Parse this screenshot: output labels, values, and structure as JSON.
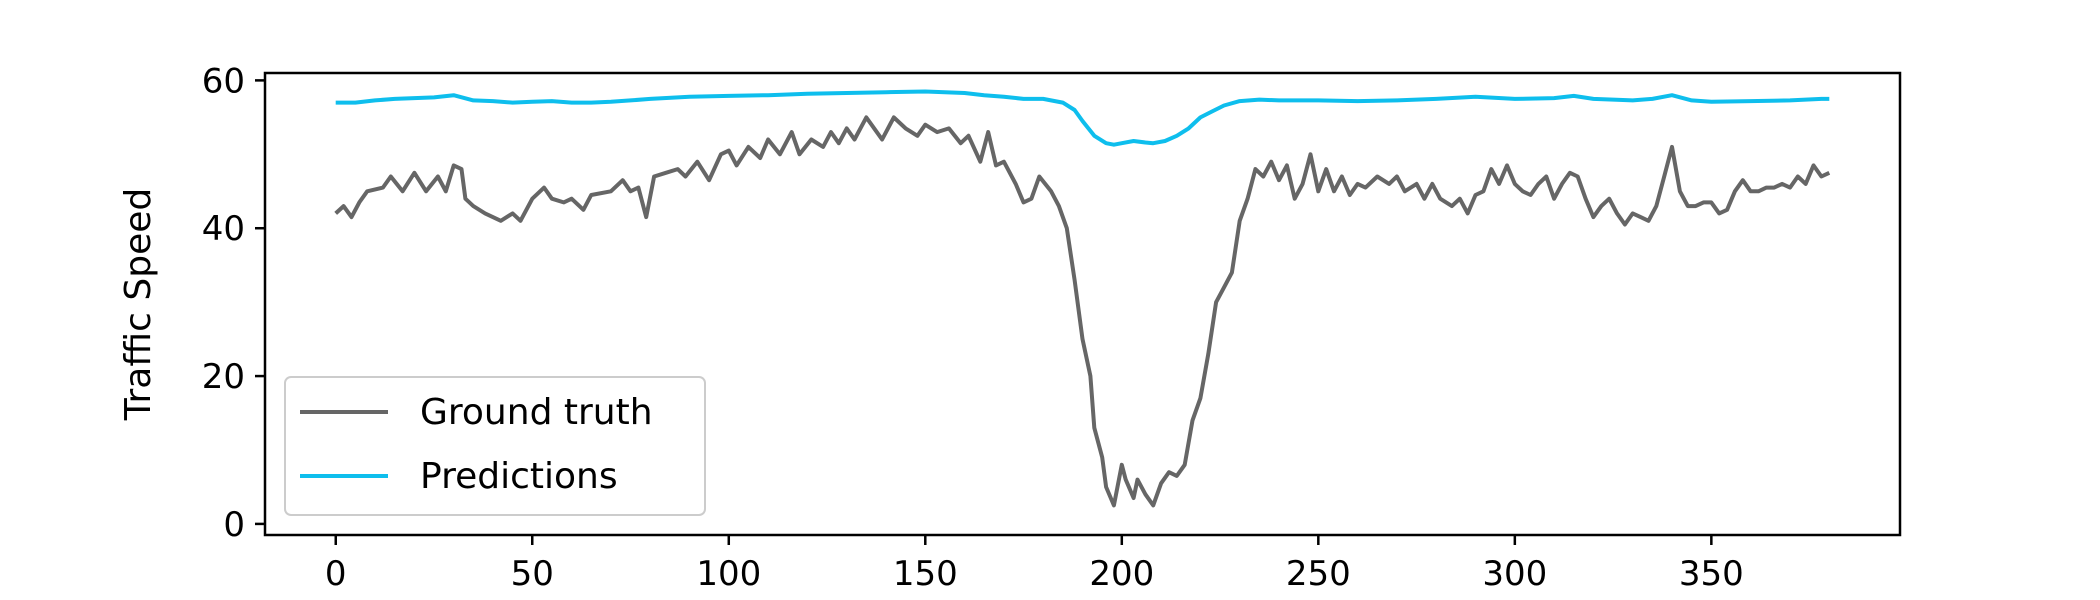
{
  "chart_data": {
    "type": "line",
    "title": "",
    "xlabel": "",
    "ylabel": "Traffic Speed",
    "xlim": [
      -18,
      398
    ],
    "ylim": [
      -1.5,
      61
    ],
    "xticks": [
      0,
      50,
      100,
      150,
      200,
      250,
      300,
      350
    ],
    "yticks": [
      0,
      20,
      40,
      60
    ],
    "grid": false,
    "legend_position": "lower-left",
    "series": [
      {
        "name": "Ground truth",
        "color": "#666666",
        "points": [
          [
            0,
            42
          ],
          [
            2,
            43
          ],
          [
            4,
            41.5
          ],
          [
            6,
            43.5
          ],
          [
            8,
            45
          ],
          [
            12,
            45.5
          ],
          [
            14,
            47
          ],
          [
            17,
            45
          ],
          [
            20,
            47.5
          ],
          [
            23,
            45
          ],
          [
            26,
            47
          ],
          [
            28,
            45
          ],
          [
            30,
            48.5
          ],
          [
            32,
            48
          ],
          [
            33,
            44
          ],
          [
            35,
            43
          ],
          [
            38,
            42
          ],
          [
            42,
            41
          ],
          [
            45,
            42
          ],
          [
            47,
            41
          ],
          [
            50,
            44
          ],
          [
            53,
            45.5
          ],
          [
            55,
            44
          ],
          [
            58,
            43.5
          ],
          [
            60,
            44
          ],
          [
            63,
            42.5
          ],
          [
            65,
            44.5
          ],
          [
            70,
            45
          ],
          [
            73,
            46.5
          ],
          [
            75,
            45
          ],
          [
            77,
            45.5
          ],
          [
            79,
            41.5
          ],
          [
            81,
            47
          ],
          [
            84,
            47.5
          ],
          [
            87,
            48
          ],
          [
            89,
            47
          ],
          [
            92,
            49
          ],
          [
            95,
            46.5
          ],
          [
            98,
            50
          ],
          [
            100,
            50.5
          ],
          [
            102,
            48.5
          ],
          [
            105,
            51
          ],
          [
            108,
            49.5
          ],
          [
            110,
            52
          ],
          [
            113,
            50
          ],
          [
            116,
            53
          ],
          [
            118,
            50
          ],
          [
            121,
            52
          ],
          [
            124,
            51
          ],
          [
            126,
            53
          ],
          [
            128,
            51.5
          ],
          [
            130,
            53.5
          ],
          [
            132,
            52
          ],
          [
            135,
            55
          ],
          [
            137,
            53.5
          ],
          [
            139,
            52
          ],
          [
            142,
            55
          ],
          [
            145,
            53.5
          ],
          [
            148,
            52.5
          ],
          [
            150,
            54
          ],
          [
            153,
            53
          ],
          [
            156,
            53.5
          ],
          [
            159,
            51.5
          ],
          [
            161,
            52.5
          ],
          [
            164,
            49
          ],
          [
            166,
            53
          ],
          [
            168,
            48.5
          ],
          [
            170,
            49
          ],
          [
            173,
            46
          ],
          [
            175,
            43.5
          ],
          [
            177,
            44
          ],
          [
            179,
            47
          ],
          [
            182,
            45
          ],
          [
            184,
            43
          ],
          [
            186,
            40
          ],
          [
            188,
            33
          ],
          [
            190,
            25
          ],
          [
            192,
            20
          ],
          [
            193,
            13
          ],
          [
            195,
            9
          ],
          [
            196,
            5
          ],
          [
            198,
            2.5
          ],
          [
            200,
            8
          ],
          [
            201,
            6
          ],
          [
            203,
            3.5
          ],
          [
            204,
            6
          ],
          [
            206,
            4
          ],
          [
            208,
            2.5
          ],
          [
            210,
            5.5
          ],
          [
            212,
            7
          ],
          [
            214,
            6.5
          ],
          [
            216,
            8
          ],
          [
            218,
            14
          ],
          [
            220,
            17
          ],
          [
            222,
            23
          ],
          [
            224,
            30
          ],
          [
            226,
            32
          ],
          [
            228,
            34
          ],
          [
            230,
            41
          ],
          [
            232,
            44
          ],
          [
            234,
            48
          ],
          [
            236,
            47
          ],
          [
            238,
            49
          ],
          [
            240,
            46.5
          ],
          [
            242,
            48.5
          ],
          [
            244,
            44
          ],
          [
            246,
            46
          ],
          [
            248,
            50
          ],
          [
            250,
            45
          ],
          [
            252,
            48
          ],
          [
            254,
            45
          ],
          [
            256,
            47
          ],
          [
            258,
            44.5
          ],
          [
            260,
            46
          ],
          [
            262,
            45.5
          ],
          [
            265,
            47
          ],
          [
            268,
            46
          ],
          [
            270,
            47
          ],
          [
            272,
            45
          ],
          [
            275,
            46
          ],
          [
            277,
            44
          ],
          [
            279,
            46
          ],
          [
            281,
            44
          ],
          [
            284,
            43
          ],
          [
            286,
            44
          ],
          [
            288,
            42
          ],
          [
            290,
            44.5
          ],
          [
            292,
            45
          ],
          [
            294,
            48
          ],
          [
            296,
            46
          ],
          [
            298,
            48.5
          ],
          [
            300,
            46
          ],
          [
            302,
            45
          ],
          [
            304,
            44.5
          ],
          [
            306,
            46
          ],
          [
            308,
            47
          ],
          [
            310,
            44
          ],
          [
            312,
            46
          ],
          [
            314,
            47.5
          ],
          [
            316,
            47
          ],
          [
            318,
            44
          ],
          [
            320,
            41.5
          ],
          [
            322,
            43
          ],
          [
            324,
            44
          ],
          [
            326,
            42
          ],
          [
            328,
            40.5
          ],
          [
            330,
            42
          ],
          [
            332,
            41.5
          ],
          [
            334,
            41
          ],
          [
            336,
            43
          ],
          [
            338,
            47
          ],
          [
            340,
            51
          ],
          [
            342,
            45
          ],
          [
            344,
            43
          ],
          [
            346,
            43
          ],
          [
            348,
            43.5
          ],
          [
            350,
            43.5
          ],
          [
            352,
            42
          ],
          [
            354,
            42.5
          ],
          [
            356,
            45
          ],
          [
            358,
            46.5
          ],
          [
            360,
            45
          ],
          [
            362,
            45
          ],
          [
            364,
            45.5
          ],
          [
            366,
            45.5
          ],
          [
            368,
            46
          ],
          [
            370,
            45.5
          ],
          [
            372,
            47
          ],
          [
            374,
            46
          ],
          [
            376,
            48.5
          ],
          [
            378,
            47
          ],
          [
            380,
            47.5
          ]
        ]
      },
      {
        "name": "Predictions",
        "color": "#0ebeed",
        "points": [
          [
            0,
            57
          ],
          [
            5,
            57
          ],
          [
            10,
            57.3
          ],
          [
            15,
            57.5
          ],
          [
            20,
            57.6
          ],
          [
            25,
            57.7
          ],
          [
            30,
            58
          ],
          [
            35,
            57.3
          ],
          [
            40,
            57.2
          ],
          [
            45,
            57
          ],
          [
            50,
            57.1
          ],
          [
            55,
            57.2
          ],
          [
            60,
            57
          ],
          [
            65,
            57
          ],
          [
            70,
            57.1
          ],
          [
            75,
            57.3
          ],
          [
            80,
            57.5
          ],
          [
            90,
            57.8
          ],
          [
            100,
            57.9
          ],
          [
            110,
            58
          ],
          [
            120,
            58.2
          ],
          [
            130,
            58.3
          ],
          [
            140,
            58.4
          ],
          [
            150,
            58.5
          ],
          [
            155,
            58.4
          ],
          [
            160,
            58.3
          ],
          [
            165,
            58
          ],
          [
            170,
            57.8
          ],
          [
            175,
            57.5
          ],
          [
            180,
            57.5
          ],
          [
            185,
            57
          ],
          [
            188,
            56
          ],
          [
            190,
            54.5
          ],
          [
            193,
            52.5
          ],
          [
            196,
            51.5
          ],
          [
            198,
            51.3
          ],
          [
            200,
            51.5
          ],
          [
            203,
            51.8
          ],
          [
            206,
            51.6
          ],
          [
            208,
            51.5
          ],
          [
            211,
            51.8
          ],
          [
            214,
            52.5
          ],
          [
            217,
            53.5
          ],
          [
            220,
            55
          ],
          [
            223,
            55.8
          ],
          [
            226,
            56.6
          ],
          [
            230,
            57.2
          ],
          [
            235,
            57.4
          ],
          [
            240,
            57.3
          ],
          [
            250,
            57.3
          ],
          [
            260,
            57.2
          ],
          [
            270,
            57.3
          ],
          [
            280,
            57.5
          ],
          [
            290,
            57.8
          ],
          [
            300,
            57.5
          ],
          [
            310,
            57.6
          ],
          [
            315,
            57.9
          ],
          [
            320,
            57.5
          ],
          [
            330,
            57.3
          ],
          [
            335,
            57.5
          ],
          [
            340,
            58
          ],
          [
            345,
            57.3
          ],
          [
            350,
            57.1
          ],
          [
            360,
            57.2
          ],
          [
            370,
            57.3
          ],
          [
            378,
            57.5
          ],
          [
            380,
            57.5
          ]
        ]
      }
    ]
  }
}
